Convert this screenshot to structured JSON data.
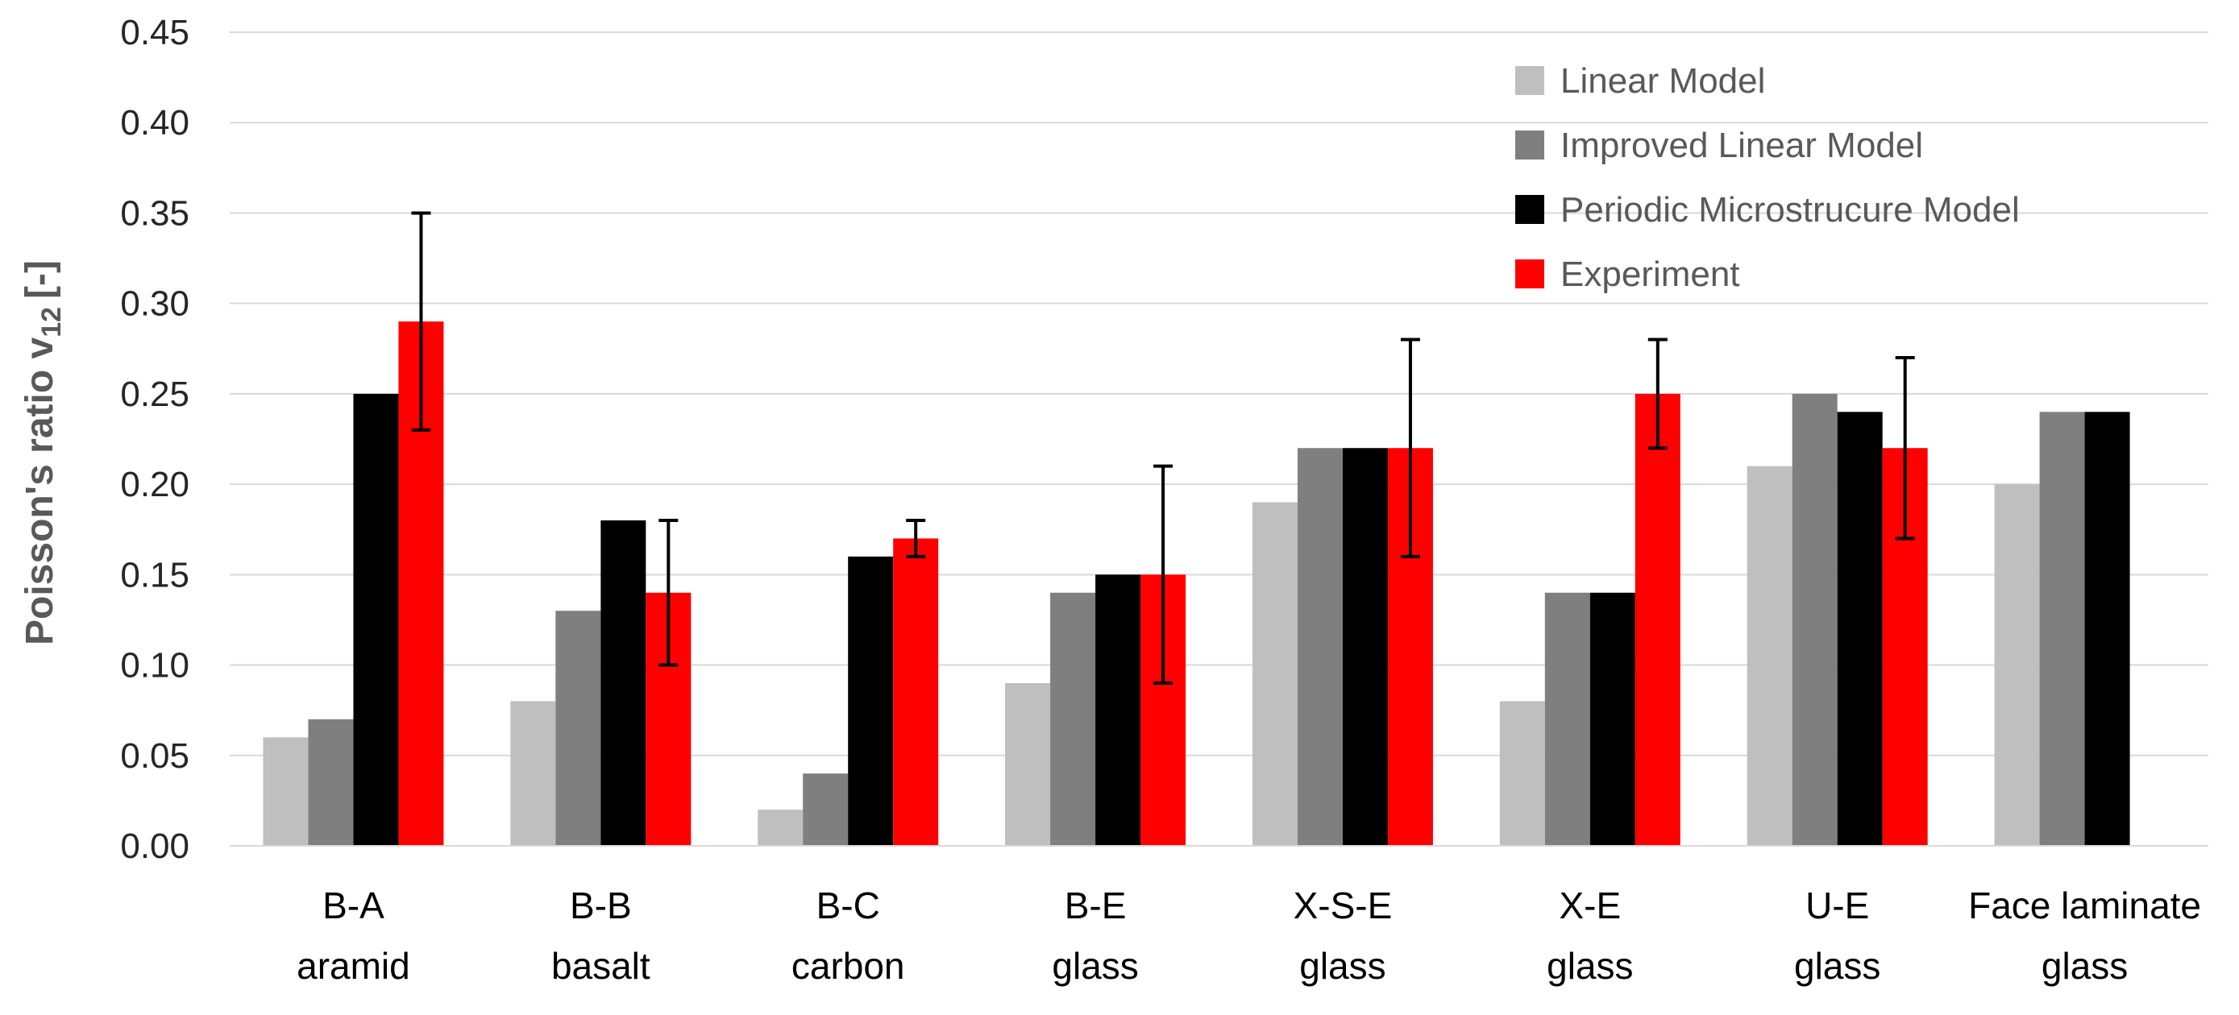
{
  "chart_data": {
    "type": "bar",
    "title": "",
    "ylabel": "Poisson's ratio v",
    "ylabel_subscript": "12",
    "ylabel_unit": "[-]",
    "xlabel": "",
    "ylim": [
      0,
      0.45
    ],
    "yticks": [
      0.0,
      0.05,
      0.1,
      0.15,
      0.2,
      0.25,
      0.3,
      0.35,
      0.4,
      0.45
    ],
    "ytick_labels": [
      "0.00",
      "0.05",
      "0.10",
      "0.15",
      "0.20",
      "0.25",
      "0.30",
      "0.35",
      "0.40",
      "0.45"
    ],
    "grid": true,
    "legend_position": "top-right",
    "categories": [
      {
        "line1": "B-A",
        "line2": "aramid"
      },
      {
        "line1": "B-B",
        "line2": "basalt"
      },
      {
        "line1": "B-C",
        "line2": "carbon"
      },
      {
        "line1": "B-E",
        "line2": "glass"
      },
      {
        "line1": "X-S-E",
        "line2": "glass"
      },
      {
        "line1": "X-E",
        "line2": "glass"
      },
      {
        "line1": "U-E",
        "line2": "glass"
      },
      {
        "line1": "Face laminate",
        "line2": "glass"
      }
    ],
    "series": [
      {
        "name": "Linear Model",
        "color": "#bfbfbf",
        "values": [
          0.06,
          0.08,
          0.02,
          0.09,
          0.19,
          0.08,
          0.21,
          0.2
        ]
      },
      {
        "name": "Improved Linear Model",
        "color": "#7f7f7f",
        "values": [
          0.07,
          0.13,
          0.04,
          0.14,
          0.22,
          0.14,
          0.25,
          0.24
        ]
      },
      {
        "name": "Periodic Microstrucure Model",
        "color": "#000000",
        "values": [
          0.25,
          0.18,
          0.16,
          0.15,
          0.22,
          0.14,
          0.24,
          0.24
        ]
      },
      {
        "name": "Experiment",
        "color": "#ff0000",
        "values": [
          0.29,
          0.14,
          0.17,
          0.15,
          0.22,
          0.25,
          0.22,
          null
        ],
        "error_low": [
          0.23,
          0.1,
          0.16,
          0.09,
          0.16,
          0.22,
          0.17,
          null
        ],
        "error_high": [
          0.35,
          0.18,
          0.18,
          0.21,
          0.28,
          0.28,
          0.27,
          null
        ]
      }
    ]
  }
}
